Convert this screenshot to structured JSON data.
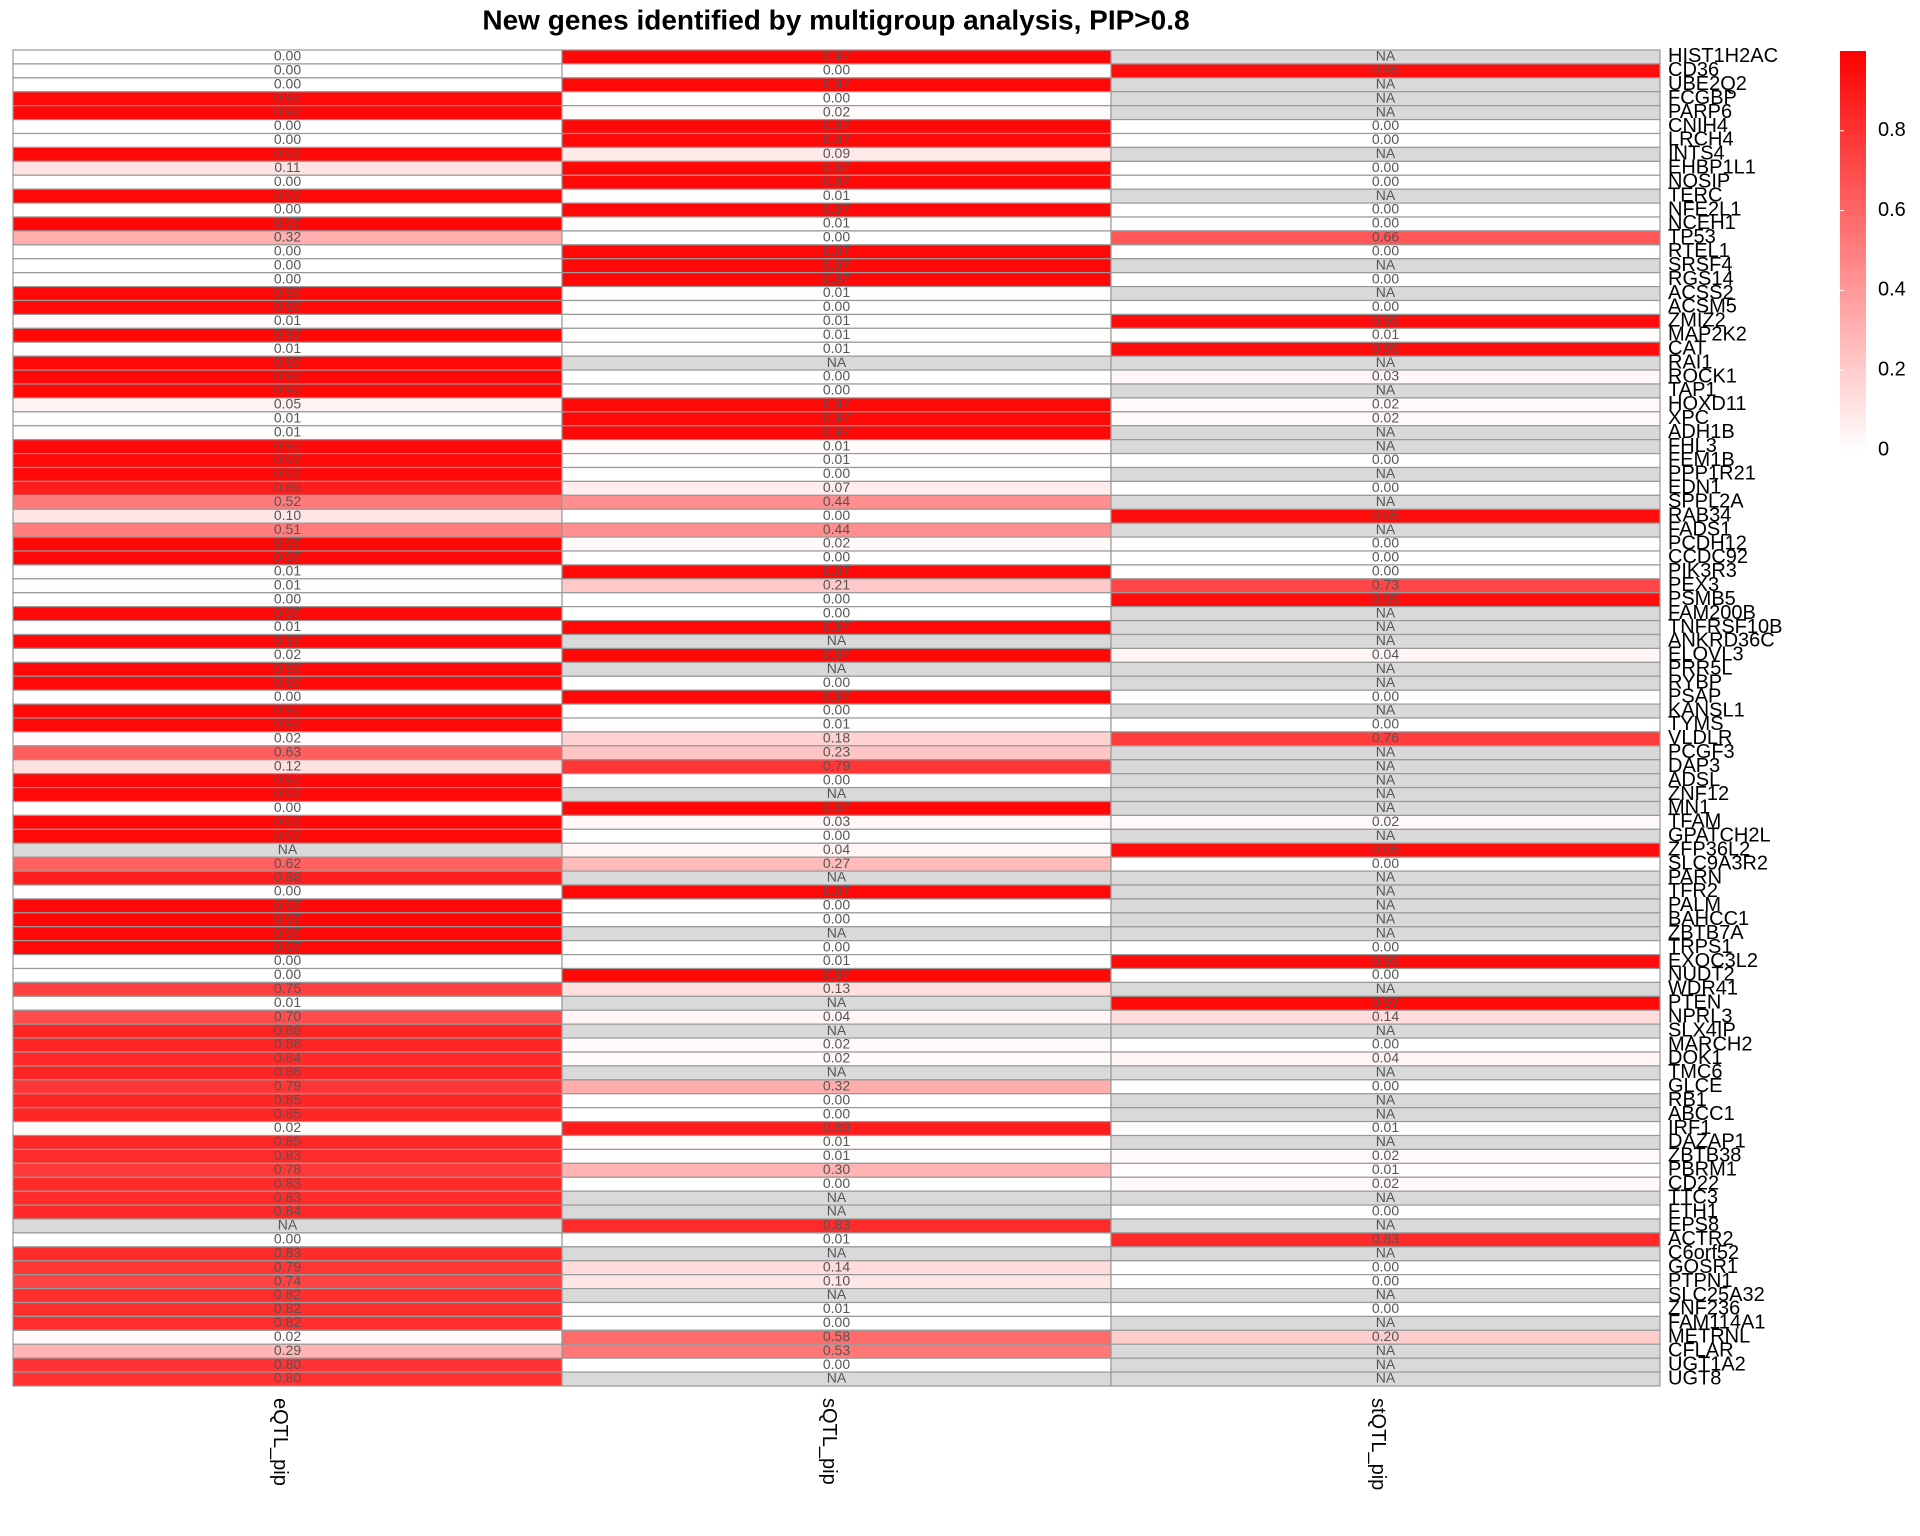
{
  "chart_data": {
    "type": "heatmap",
    "title": "New genes identified by multigroup analysis, PIP>0.8",
    "rows": [
      "HIST1H2AC",
      "CD36",
      "UBE2Q2",
      "FCGBP",
      "PARP6",
      "CNIH4",
      "LRCH4",
      "INTS4",
      "EHBP1L1",
      "NOSIP",
      "TERC",
      "NFE2L1",
      "NCEH1",
      "TP53",
      "RTEL1",
      "SRSF4",
      "RGS14",
      "ACSS2",
      "ACSM5",
      "ZMIZ2",
      "MAP2K2",
      "CAT",
      "RAI1",
      "ROCK1",
      "TAP1",
      "HOXD11",
      "XPC",
      "ADH1B",
      "FHL3",
      "FEM1B",
      "PPP1R21",
      "EDN1",
      "SPPL2A",
      "RAB34",
      "FADS1",
      "PCDH12",
      "CCDC92",
      "PIK3R3",
      "PEX3",
      "PSMB5",
      "FAM200B",
      "TNFRSF10B",
      "ANKRD36C",
      "ELOVL3",
      "PRR5L",
      "RYBP",
      "PSAP",
      "KANSL1",
      "TYMS",
      "VLDLR",
      "PCGF3",
      "DAP3",
      "ADSL",
      "ZNF12",
      "MN1",
      "TFAM",
      "GPATCH2L",
      "ZFP36L2",
      "SLC9A3R2",
      "PARN",
      "TFR2",
      "PALM",
      "BAHCC1",
      "ZBTB7A",
      "TRPS1",
      "EXOC3L2",
      "NUDT2",
      "WDR41",
      "PTEN",
      "NPRL3",
      "SLX4IP",
      "MARCH2",
      "DOK1",
      "TMC6",
      "GLCE",
      "RB1",
      "ABCC1",
      "IRF1",
      "DAZAP1",
      "ZBTB38",
      "PBRM1",
      "CD22",
      "TTC3",
      "FTH1",
      "EPS8",
      "ACTR2",
      "C6orf52",
      "GOSR1",
      "PTPN1",
      "SLC25A32",
      "ZNF236",
      "FAM114A1",
      "METRNL",
      "CFLAR",
      "UGT1A2",
      "UGT8"
    ],
    "series": [
      {
        "name": "eQTL_pip",
        "values": [
          0,
          0,
          0,
          0.97,
          0.97,
          0,
          0,
          0.97,
          0.11,
          0,
          0.97,
          0,
          0.97,
          0.32,
          0,
          0,
          0,
          0.97,
          0.97,
          0.01,
          0.97,
          0.01,
          0.97,
          0.97,
          0.97,
          0.05,
          0.01,
          0.01,
          0.97,
          0.97,
          0.97,
          0.89,
          0.52,
          0.1,
          0.51,
          0.97,
          0.97,
          0.01,
          0.01,
          0,
          0.97,
          0.01,
          0.97,
          0.02,
          0.97,
          0.97,
          0,
          0.97,
          0.97,
          0.02,
          0.63,
          0.12,
          0.97,
          0.97,
          0,
          0.97,
          0.97,
          null,
          0.62,
          0.88,
          0,
          0.97,
          0.97,
          0.97,
          0.97,
          0,
          0,
          0.75,
          0.01,
          0.7,
          0.86,
          0.86,
          0.84,
          0.86,
          0.79,
          0.85,
          0.85,
          0.02,
          0.85,
          0.83,
          0.78,
          0.83,
          0.83,
          0.84,
          null,
          0,
          0.83,
          0.79,
          0.74,
          0.82,
          0.82,
          0.82,
          0.02,
          0.29,
          0.8,
          0.8
        ],
        "value_labels": [
          "0.00",
          "0.00",
          "0.00",
          "0.97",
          "0.97",
          "0.00",
          "0.00",
          "0.97",
          "0.11",
          "0.00",
          "0.97",
          "0.00",
          "0.97",
          "0.32",
          "0.00",
          "0.00",
          "0.00",
          "0.97",
          "0.97",
          "0.01",
          "0.97",
          "0.01",
          "0.97",
          "0.97",
          "0.97",
          "0.05",
          "0.01",
          "0.01",
          "0.97",
          "0.97",
          "0.97",
          "0.89",
          "0.52",
          "0.10",
          "0.51",
          "0.97",
          "0.97",
          "0.01",
          "0.01",
          "0.00",
          "0.97",
          "0.01",
          "0.97",
          "0.02",
          "0.97",
          "0.97",
          "0.00",
          "0.97",
          "0.97",
          "0.02",
          "0.63",
          "0.12",
          "0.97",
          "0.97",
          "0.00",
          "0.97",
          "0.97",
          "NA",
          "0.62",
          "0.88",
          "0.00",
          "0.97",
          "0.97",
          "0.97",
          "0.97",
          "0.00",
          "0.00",
          "0.75",
          "0.01",
          "0.70",
          "0.86",
          "0.86",
          "0.84",
          "0.86",
          "0.79",
          "0.85",
          "0.85",
          "0.02",
          "0.85",
          "0.83",
          "0.78",
          "0.83",
          "0.83",
          "0.84",
          "NA",
          "0.00",
          "0.83",
          "0.79",
          "0.74",
          "0.82",
          "0.82",
          "0.82",
          "0.02",
          "0.29",
          "0.80",
          "0.80"
        ]
      },
      {
        "name": "sQTL_pip",
        "values": [
          0.97,
          0,
          0.97,
          0,
          0.02,
          0.97,
          0.97,
          0.09,
          0.97,
          0.97,
          0.01,
          0.97,
          0.01,
          0,
          0.97,
          0.97,
          0.97,
          0.01,
          0,
          0.01,
          0.01,
          0.01,
          null,
          0,
          0,
          0.97,
          0.97,
          0.97,
          0.01,
          0.01,
          0,
          0.07,
          0.44,
          0,
          0.44,
          0.02,
          0,
          0.97,
          0.21,
          0,
          0,
          0.97,
          null,
          0.97,
          null,
          0,
          0.97,
          0,
          0.01,
          0.18,
          0.23,
          0.79,
          0,
          null,
          0.97,
          0.03,
          0,
          0.04,
          0.27,
          null,
          0.97,
          0,
          0,
          null,
          0,
          0.01,
          0.97,
          0.13,
          null,
          0.04,
          null,
          0.02,
          0.02,
          null,
          0.32,
          0,
          0,
          0.89,
          0.01,
          0.01,
          0.3,
          0,
          null,
          null,
          0.83,
          0.01,
          null,
          0.14,
          0.1,
          null,
          0.01,
          0,
          0.58,
          0.53,
          0,
          null
        ],
        "value_labels": [
          "0.97",
          "0.00",
          "0.97",
          "0.00",
          "0.02",
          "0.97",
          "0.97",
          "0.09",
          "0.97",
          "0.97",
          "0.01",
          "0.97",
          "0.01",
          "0.00",
          "0.97",
          "0.97",
          "0.97",
          "0.01",
          "0.00",
          "0.01",
          "0.01",
          "0.01",
          "NA",
          "0.00",
          "0.00",
          "0.97",
          "0.97",
          "0.97",
          "0.01",
          "0.01",
          "0.00",
          "0.07",
          "0.44",
          "0.00",
          "0.44",
          "0.02",
          "0.00",
          "0.97",
          "0.21",
          "0.00",
          "0.00",
          "0.97",
          "NA",
          "0.97",
          "NA",
          "0.00",
          "0.97",
          "0.00",
          "0.01",
          "0.18",
          "0.23",
          "0.79",
          "0.00",
          "NA",
          "0.97",
          "0.03",
          "0.00",
          "0.04",
          "0.27",
          "NA",
          "0.97",
          "0.00",
          "0.00",
          "NA",
          "0.00",
          "0.01",
          "0.97",
          "0.13",
          "NA",
          "0.04",
          "NA",
          "0.02",
          "0.02",
          "NA",
          "0.32",
          "0.00",
          "0.00",
          "0.89",
          "0.01",
          "0.01",
          "0.30",
          "0.00",
          "NA",
          "NA",
          "0.83",
          "0.01",
          "NA",
          "0.14",
          "0.10",
          "NA",
          "0.01",
          "0.00",
          "0.58",
          "0.53",
          "0.00",
          "NA"
        ]
      },
      {
        "name": "stQTL_pip",
        "values": [
          null,
          0.95,
          null,
          null,
          null,
          0,
          0,
          null,
          0,
          0,
          null,
          0,
          0,
          0.66,
          0,
          null,
          0,
          null,
          0,
          0.95,
          0.01,
          0.95,
          null,
          0.03,
          null,
          0.02,
          0.02,
          null,
          null,
          0,
          null,
          0,
          null,
          0.95,
          null,
          0,
          0,
          0,
          0.73,
          0.95,
          null,
          null,
          null,
          0.04,
          null,
          null,
          0,
          null,
          0,
          0.76,
          null,
          null,
          null,
          null,
          null,
          0.02,
          null,
          0.95,
          0,
          null,
          null,
          null,
          null,
          null,
          0,
          0.95,
          0,
          null,
          0.97,
          0.14,
          null,
          0,
          0.04,
          null,
          0,
          null,
          null,
          0.01,
          null,
          0.02,
          0.01,
          0.02,
          null,
          0,
          null,
          0.83,
          null,
          0,
          0,
          null,
          0,
          null,
          0.2,
          null,
          null,
          null
        ],
        "value_labels": [
          "NA",
          "0.95",
          "NA",
          "NA",
          "NA",
          "0.00",
          "0.00",
          "NA",
          "0.00",
          "0.00",
          "NA",
          "0.00",
          "0.00",
          "0.66",
          "0.00",
          "NA",
          "0.00",
          "NA",
          "0.00",
          "0.95",
          "0.01",
          "0.95",
          "NA",
          "0.03",
          "NA",
          "0.02",
          "0.02",
          "NA",
          "NA",
          "0.00",
          "NA",
          "0.00",
          "NA",
          "0.95",
          "NA",
          "0.00",
          "0.00",
          "0.00",
          "0.73",
          "0.95",
          "NA",
          "NA",
          "NA",
          "0.04",
          "NA",
          "NA",
          "0.00",
          "NA",
          "0.00",
          "0.76",
          "NA",
          "NA",
          "NA",
          "NA",
          "NA",
          "0.02",
          "NA",
          "0.95",
          "0.00",
          "NA",
          "NA",
          "NA",
          "NA",
          "NA",
          "0.00",
          "0.95",
          "0.00",
          "NA",
          "0.97",
          "0.14",
          "NA",
          "0.00",
          "0.04",
          "NA",
          "0.00",
          "NA",
          "NA",
          "0.01",
          "NA",
          "0.02",
          "0.01",
          "0.02",
          "NA",
          "0.00",
          "NA",
          "0.83",
          "NA",
          "0.00",
          "0.00",
          "NA",
          "0.00",
          "NA",
          "0.20",
          "NA",
          "NA",
          "NA"
        ]
      }
    ],
    "low_color": "#ffffff",
    "high_color": "#ff0000",
    "na_color": "#d9d9d9",
    "clim": [
      0,
      1
    ],
    "cticks": [
      0,
      0.2,
      0.4,
      0.6,
      0.8
    ]
  }
}
